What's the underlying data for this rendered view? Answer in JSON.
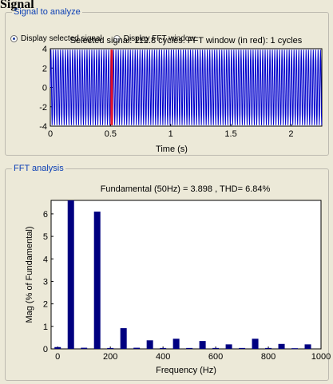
{
  "window": {
    "title": "Signal"
  },
  "signal_panel": {
    "legend": "Signal to analyze",
    "radio_selected_signal": "Display selected signal",
    "radio_fft_window": "Display FFT window",
    "selected": "selected-signal",
    "plot_title": "Selected signal: 112.8 cycles. FFT window (in red): 1 cycles",
    "xlabel": "Time (s)",
    "x_ticks": [
      "0",
      "0.5",
      "1",
      "1.5",
      "2"
    ],
    "y_ticks": [
      "4",
      "2",
      "0",
      "-2",
      "-4"
    ]
  },
  "fft_panel": {
    "legend": "FFT analysis",
    "plot_title": "Fundamental (50Hz) = 3.898 , THD= 6.84%",
    "xlabel": "Frequency (Hz)",
    "ylabel": "Mag (% of Fundamental)",
    "x_ticks": [
      "0",
      "200",
      "400",
      "600",
      "800",
      "1000"
    ],
    "y_ticks": [
      "6",
      "5",
      "4",
      "3",
      "2",
      "1",
      "0"
    ]
  },
  "colors": {
    "signal_line": "#0000cc",
    "fft_window": "#ff0000",
    "bar": "#000080",
    "panel_bg": "#ece9d8",
    "legend_text": "#0b3fb5"
  },
  "chart_data": [
    {
      "type": "line",
      "x_range": [
        0,
        2.256
      ],
      "ylim": [
        -4,
        4
      ],
      "signal_amplitude": 3.9,
      "frequency_hz": 50,
      "cycles": 112.8,
      "fft_window": [
        0.5,
        0.52
      ]
    },
    {
      "type": "bar",
      "xlim": [
        -25,
        1000
      ],
      "ylim": [
        0,
        6.6
      ],
      "x": [
        0,
        50,
        100,
        150,
        200,
        250,
        300,
        350,
        400,
        450,
        500,
        550,
        600,
        650,
        700,
        750,
        800,
        850,
        900,
        950
      ],
      "values": [
        0.08,
        6.6,
        0.05,
        6.1,
        0.04,
        0.92,
        0.05,
        0.38,
        0.04,
        0.45,
        0.04,
        0.35,
        0.04,
        0.2,
        0.04,
        0.45,
        0.04,
        0.22,
        0.03,
        0.2
      ]
    }
  ]
}
